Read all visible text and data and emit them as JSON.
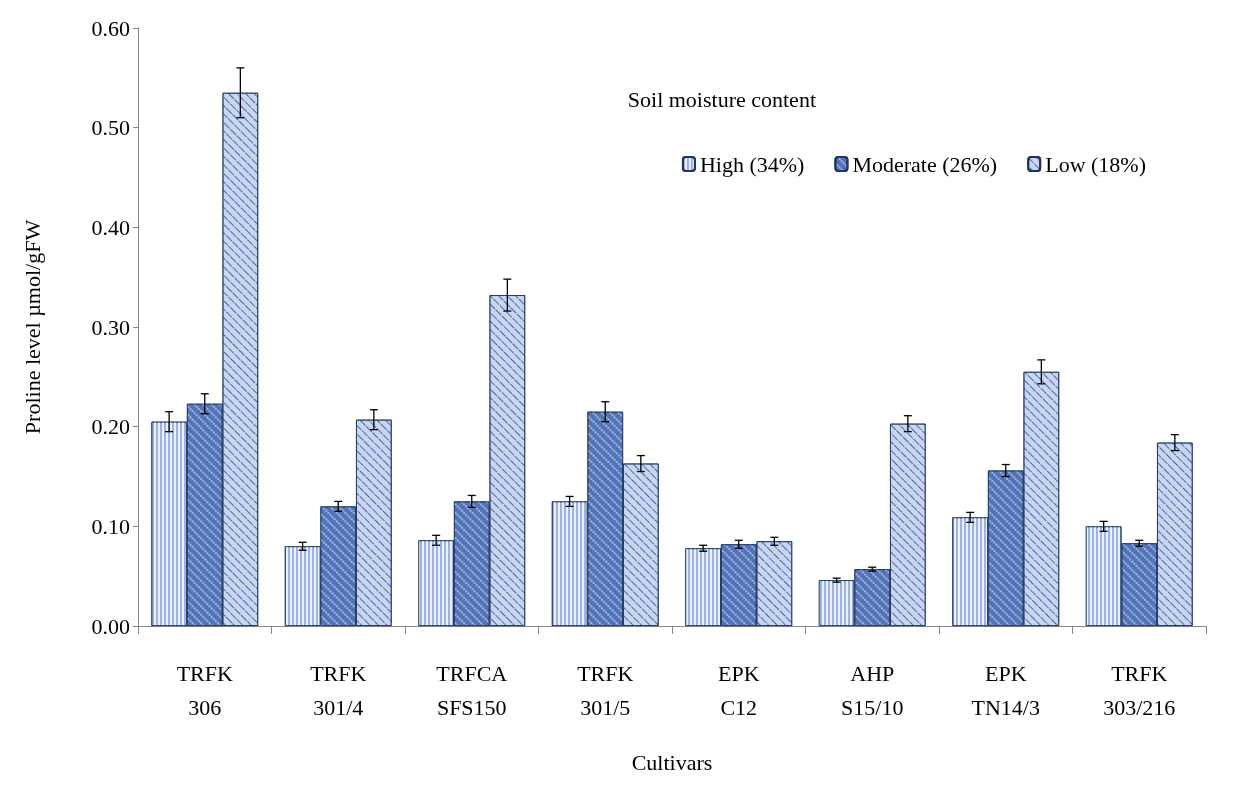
{
  "chart_data": {
    "type": "bar",
    "xlabel": "Cultivars",
    "ylabel": "Proline level µmol/gFW",
    "legend_title": "Soil moisture content",
    "categories": [
      "TRFK\n306",
      "TRFK\n301/4",
      "TRFCA\nSFS150",
      "TRFK\n301/5",
      "EPK\nC12",
      "AHP\nS15/10",
      "EPK\nTN14/3",
      "TRFK\n303/216"
    ],
    "series": [
      {
        "name": "High (34%)",
        "color": "#9db4e3",
        "values": [
          0.205,
          0.08,
          0.086,
          0.125,
          0.078,
          0.046,
          0.109,
          0.1
        ],
        "errors": [
          0.01,
          0.004,
          0.005,
          0.005,
          0.003,
          0.002,
          0.005,
          0.005
        ]
      },
      {
        "name": "Moderate (26%)",
        "color": "#4f72b8",
        "values": [
          0.223,
          0.12,
          0.125,
          0.215,
          0.082,
          0.057,
          0.156,
          0.083
        ],
        "errors": [
          0.01,
          0.005,
          0.006,
          0.01,
          0.004,
          0.002,
          0.006,
          0.003
        ]
      },
      {
        "name": "Low (18%)",
        "color": "#c9d6f0",
        "values": [
          0.535,
          0.207,
          0.332,
          0.163,
          0.085,
          0.203,
          0.255,
          0.184
        ],
        "errors": [
          0.025,
          0.01,
          0.016,
          0.008,
          0.004,
          0.008,
          0.012,
          0.008
        ]
      }
    ],
    "ylim": [
      0,
      0.6
    ],
    "yticks": [
      {
        "value": 0,
        "label": "0.00"
      },
      {
        "value": 0.1,
        "label": "0.10"
      },
      {
        "value": 0.2,
        "label": "0.20"
      },
      {
        "value": 0.3,
        "label": "0.30"
      },
      {
        "value": 0.4,
        "label": "0.40"
      },
      {
        "value": 0.5,
        "label": "0.50"
      },
      {
        "value": 0.6,
        "label": "0.60"
      }
    ],
    "grid": false,
    "legend": "top right"
  }
}
